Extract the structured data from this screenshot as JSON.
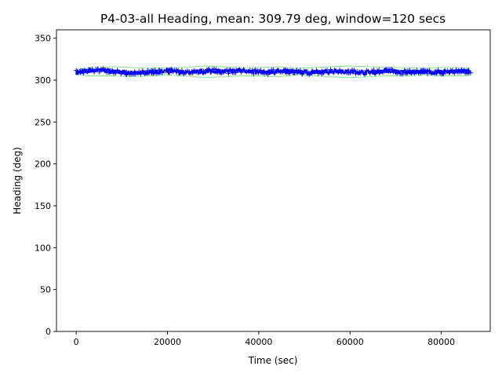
{
  "chart_data": {
    "type": "line",
    "title": "P4-03-all Heading, mean: 309.79 deg, window=120 secs",
    "xlabel": "Time (sec)",
    "ylabel": "Heading (deg)",
    "xlim": [
      -4320,
      90720
    ],
    "ylim": [
      0,
      360
    ],
    "xticks": [
      0,
      20000,
      40000,
      60000,
      80000
    ],
    "xtick_labels": [
      "0",
      "20000",
      "40000",
      "60000",
      "80000"
    ],
    "yticks": [
      0,
      50,
      100,
      150,
      200,
      250,
      300,
      350
    ],
    "ytick_labels": [
      "0",
      "50",
      "100",
      "150",
      "200",
      "250",
      "300",
      "350"
    ],
    "grid": false,
    "x_start": 0,
    "x_end": 86400,
    "mean": 309.79,
    "series": [
      {
        "role": "heading",
        "color": "#0000ff",
        "marker": "plus",
        "x": [
          0,
          3000,
          6000,
          9000,
          12000,
          15000,
          18000,
          21000,
          24000,
          27000,
          30000,
          33000,
          36000,
          39000,
          42000,
          45000,
          48000,
          51000,
          54000,
          57000,
          60000,
          63000,
          66000,
          69000,
          72000,
          75000,
          78000,
          81000,
          84000,
          86400
        ],
        "y": [
          309,
          311,
          312,
          310,
          308,
          309,
          310,
          311,
          309,
          310,
          311,
          310,
          312,
          310,
          309,
          311,
          310,
          309,
          310,
          311,
          310,
          309,
          310,
          311,
          309,
          310,
          309,
          310,
          311,
          310
        ],
        "spread": 5
      },
      {
        "role": "upper-envelope",
        "color": "#00cc00",
        "x": [
          0,
          4000,
          8000,
          12000,
          16000,
          20000,
          24000,
          28000,
          32000,
          36000,
          40000,
          44000,
          48000,
          52000,
          56000,
          60000,
          64000,
          68000,
          72000,
          76000,
          80000,
          84000,
          86400
        ],
        "y": [
          313,
          315,
          316,
          315,
          314,
          315,
          315,
          317,
          316,
          315,
          315,
          316,
          314,
          315,
          316,
          317,
          316,
          315,
          315,
          314,
          315,
          315,
          314
        ]
      },
      {
        "role": "lower-envelope",
        "color": "#00cc00",
        "x": [
          0,
          4000,
          8000,
          12000,
          16000,
          20000,
          24000,
          28000,
          32000,
          36000,
          40000,
          44000,
          48000,
          52000,
          56000,
          60000,
          64000,
          68000,
          72000,
          76000,
          80000,
          84000,
          86400
        ],
        "y": [
          306,
          305,
          305,
          304,
          305,
          306,
          305,
          303,
          304,
          305,
          305,
          304,
          306,
          305,
          304,
          303,
          304,
          305,
          305,
          306,
          305,
          305,
          306
        ]
      }
    ]
  }
}
